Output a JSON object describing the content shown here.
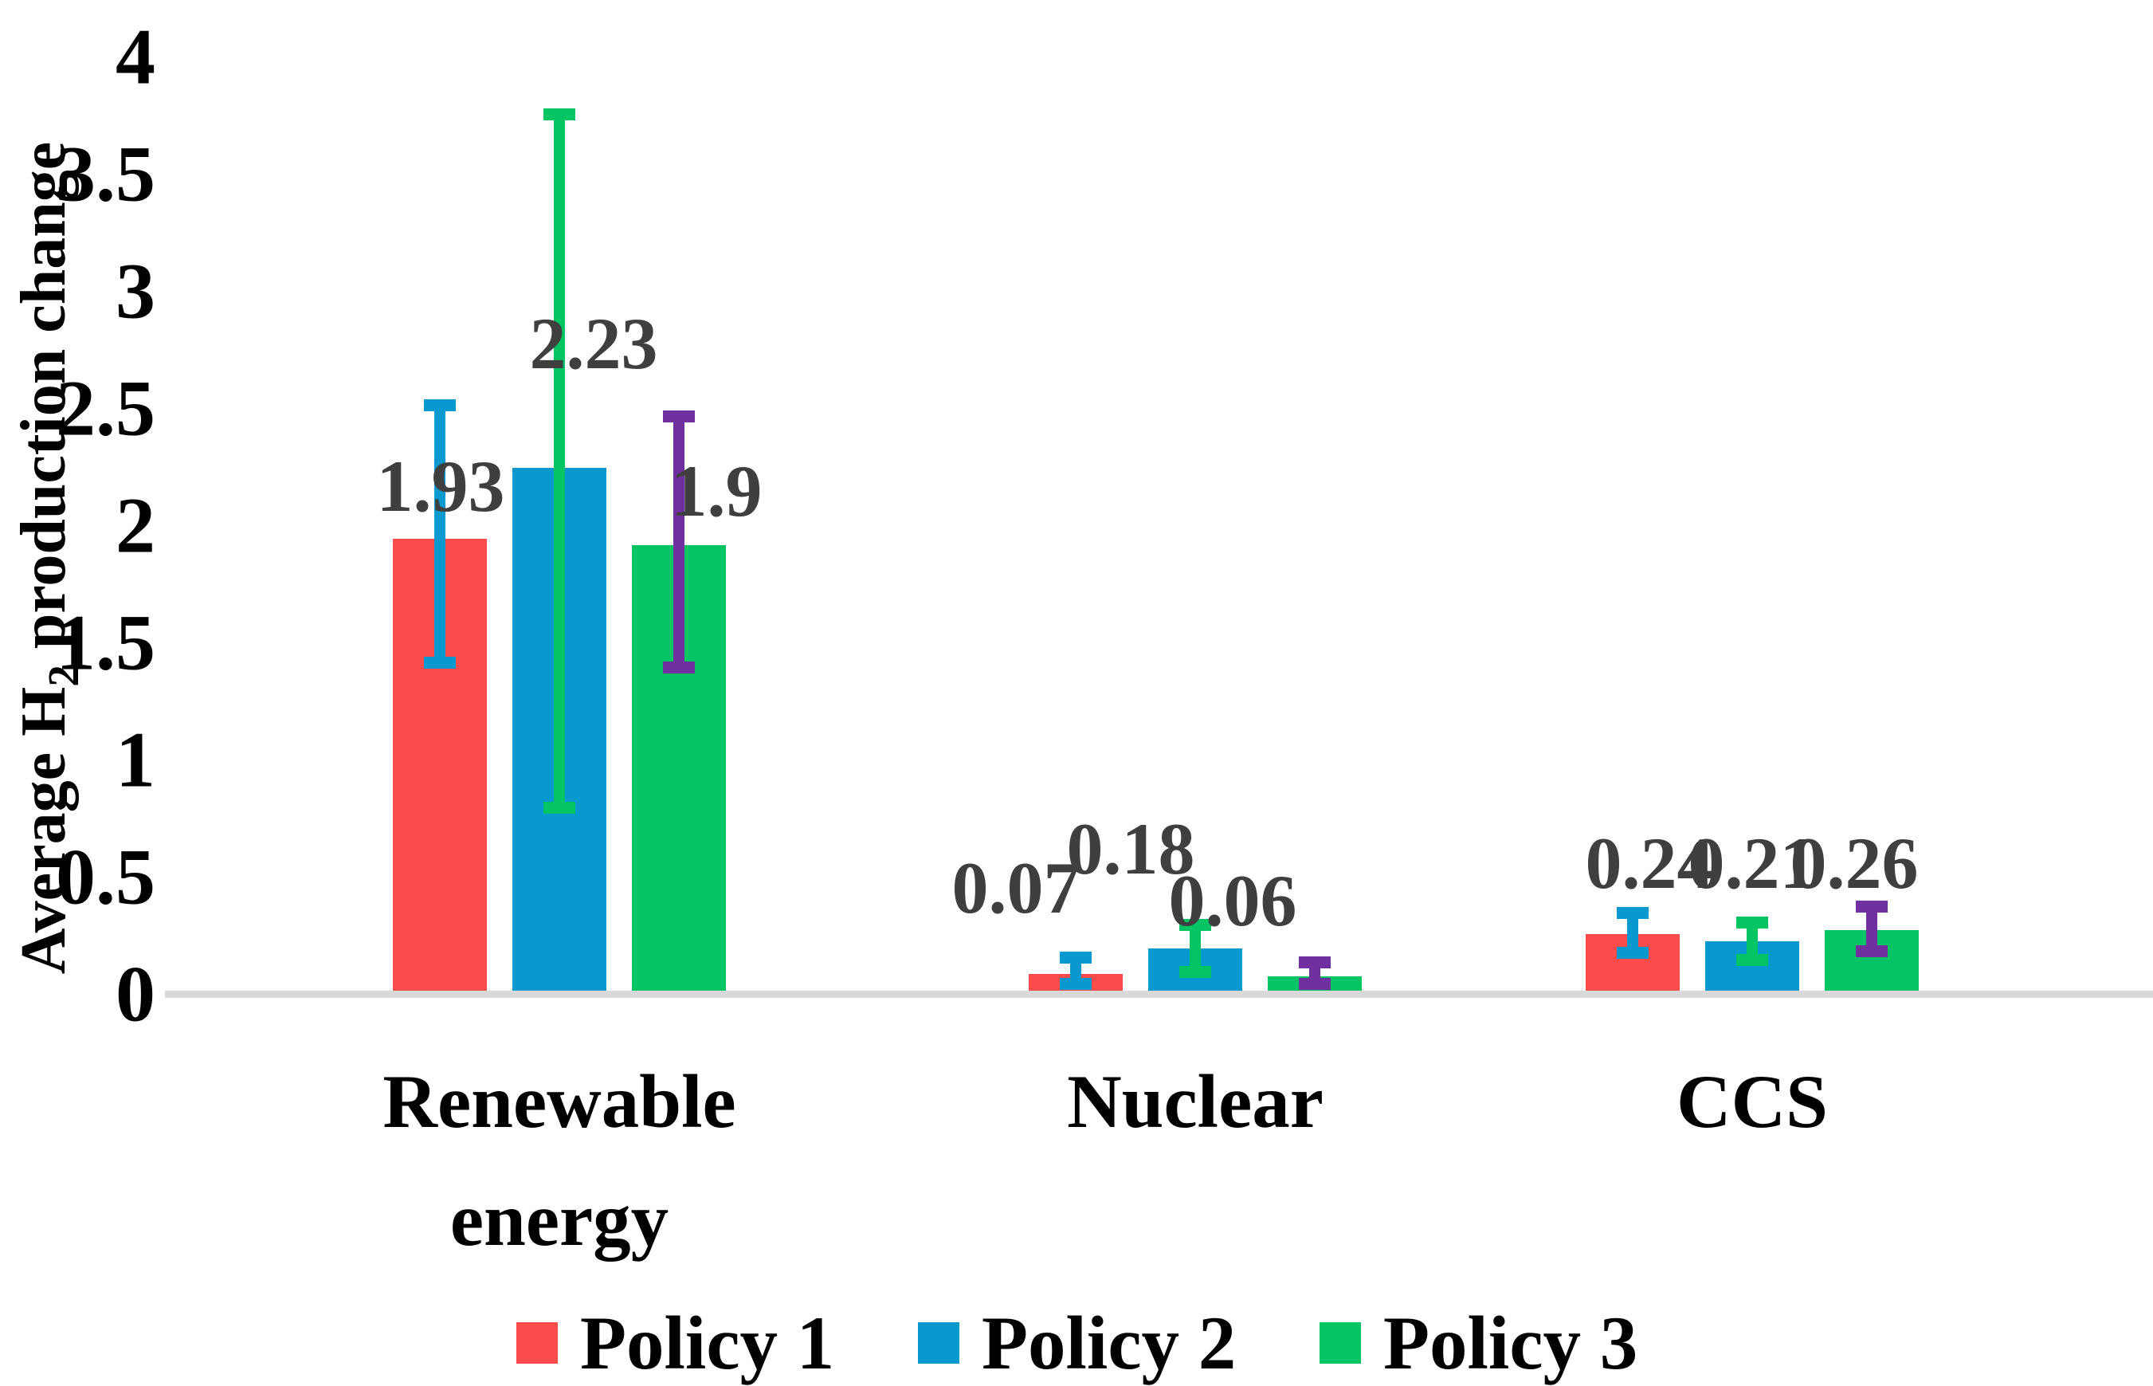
{
  "figure": {
    "background": "#FFFFFF",
    "axis_line_color": "#D9D9D9",
    "data_label_color": "#3F3F3F",
    "text_color": "#000000"
  },
  "ylabel_prefix": "Average H",
  "ylabel_sub": "2",
  "ylabel_suffix": " production change",
  "chart_data": {
    "type": "bar",
    "title": "",
    "xlabel": "",
    "ylabel": "Average H2 production change",
    "ylim": [
      0,
      4
    ],
    "yticks": [
      "0",
      "0.5",
      "1",
      "1.5",
      "2",
      "2.5",
      "3",
      "3.5",
      "4"
    ],
    "grid": false,
    "legend_position": "bottom",
    "categories": [
      "Renewable energy",
      "Nuclear",
      "CCS"
    ],
    "series": [
      {
        "name": "Policy 1",
        "color": "#FB4B4B",
        "error_bar_color": "#0999CE",
        "values": [
          1.93,
          0.07,
          0.24
        ],
        "data_labels": [
          "1.93",
          "0.07",
          "0.24"
        ],
        "error_low": [
          1.4,
          0.03,
          0.16
        ],
        "error_high": [
          2.5,
          0.14,
          0.33
        ]
      },
      {
        "name": "Policy 2",
        "color": "#0999CE",
        "error_bar_color": "#04C464",
        "values": [
          2.23,
          0.18,
          0.21
        ],
        "data_labels": [
          "2.23",
          "0.18",
          "0.21"
        ],
        "error_low": [
          0.78,
          0.08,
          0.13
        ],
        "error_high": [
          3.74,
          0.28,
          0.29
        ]
      },
      {
        "name": "Policy 3",
        "color": "#04C464",
        "error_bar_color": "#7030A0",
        "values": [
          1.9,
          0.06,
          0.26
        ],
        "data_labels": [
          "1.9",
          "0.06",
          "0.26"
        ],
        "error_low": [
          1.38,
          0.03,
          0.17
        ],
        "error_high": [
          2.45,
          0.12,
          0.36
        ]
      }
    ],
    "legend": [
      "Policy 1",
      "Policy 2",
      "Policy 3"
    ]
  }
}
